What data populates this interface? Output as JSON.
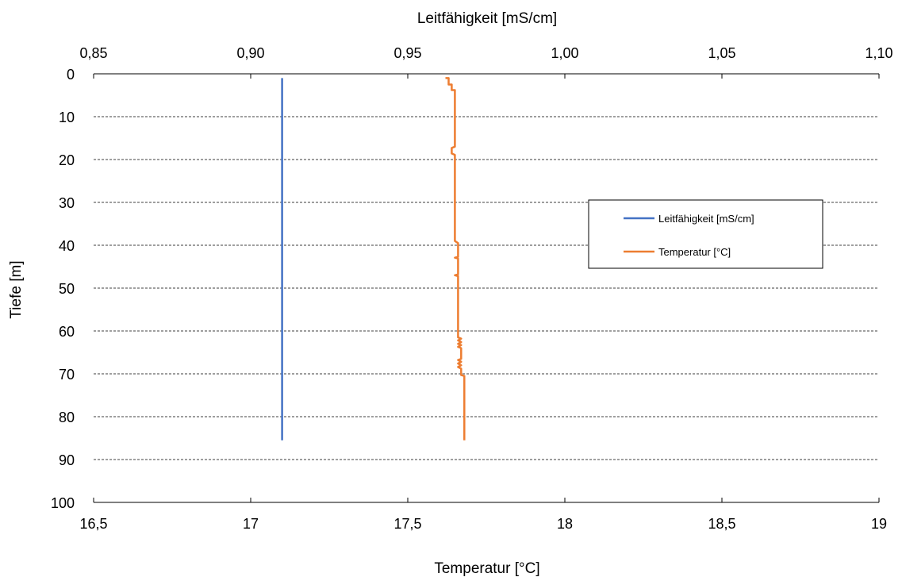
{
  "chart_data": {
    "type": "line",
    "top_axis": {
      "label": "Leitfähigkeit [mS/cm]",
      "range": [
        0.85,
        1.1
      ],
      "ticks": [
        "0,85",
        "0,90",
        "0,95",
        "1,00",
        "1,05",
        "1,10"
      ],
      "tick_values": [
        0.85,
        0.9,
        0.95,
        1.0,
        1.05,
        1.1
      ]
    },
    "bottom_axis": {
      "label": "Temperatur [°C]",
      "range": [
        16.5,
        19
      ],
      "ticks": [
        "16,5",
        "17",
        "17,5",
        "18",
        "18,5",
        "19"
      ],
      "tick_values": [
        16.5,
        17,
        17.5,
        18,
        18.5,
        19
      ]
    },
    "y_axis": {
      "label": "Tiefe [m]",
      "range": [
        0,
        100
      ],
      "inverted": true,
      "ticks": [
        "0",
        "10",
        "20",
        "30",
        "40",
        "50",
        "60",
        "70",
        "80",
        "90",
        "100"
      ],
      "tick_values": [
        0,
        10,
        20,
        30,
        40,
        50,
        60,
        70,
        80,
        90,
        100
      ]
    },
    "grid": "horizontal dashed",
    "legend_position": "right",
    "series": [
      {
        "name": "Leitfähigkeit [mS/cm]",
        "axis": "top",
        "color": "#4472C4",
        "points": [
          [
            0.91,
            1
          ],
          [
            0.91,
            85.5
          ]
        ]
      },
      {
        "name": "Temperatur [°C]",
        "axis": "bottom",
        "color": "#ED7D31",
        "points": [
          [
            17.62,
            1
          ],
          [
            17.63,
            1
          ],
          [
            17.63,
            2.5
          ],
          [
            17.64,
            2.5
          ],
          [
            17.64,
            3.8
          ],
          [
            17.65,
            3.8
          ],
          [
            17.65,
            6
          ],
          [
            17.65,
            17
          ],
          [
            17.64,
            17.3
          ],
          [
            17.64,
            18.6
          ],
          [
            17.65,
            18.9
          ],
          [
            17.65,
            39
          ],
          [
            17.66,
            39.5
          ],
          [
            17.66,
            42.7
          ],
          [
            17.65,
            42.9
          ],
          [
            17.66,
            43.1
          ],
          [
            17.66,
            46.8
          ],
          [
            17.65,
            47
          ],
          [
            17.66,
            47.2
          ],
          [
            17.66,
            61.5
          ],
          [
            17.67,
            61.8
          ],
          [
            17.66,
            62.2
          ],
          [
            17.67,
            62.6
          ],
          [
            17.66,
            63
          ],
          [
            17.67,
            63.3
          ],
          [
            17.66,
            63.7
          ],
          [
            17.67,
            64
          ],
          [
            17.67,
            66.5
          ],
          [
            17.66,
            66.8
          ],
          [
            17.67,
            67.2
          ],
          [
            17.66,
            67.6
          ],
          [
            17.67,
            68
          ],
          [
            17.66,
            68.4
          ],
          [
            17.67,
            68.8
          ],
          [
            17.67,
            70.3
          ],
          [
            17.68,
            70.5
          ],
          [
            17.68,
            85.5
          ]
        ]
      }
    ]
  }
}
